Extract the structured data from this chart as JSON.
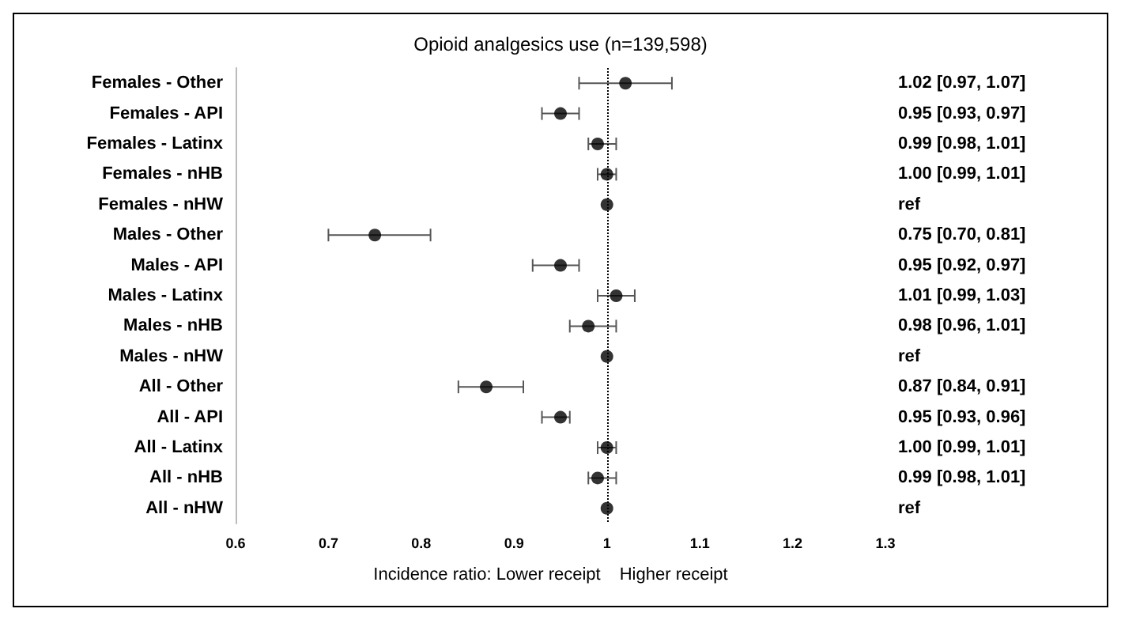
{
  "chart_data": {
    "type": "scatter",
    "orientation": "horizontal",
    "title": "Opioid analgesics use (n=139,598)",
    "categories": [
      "Females - Other",
      "Females - API",
      "Females - Latinx",
      "Females - nHB",
      "Females - nHW",
      "Males - Other",
      "Males - API",
      "Males - Latinx",
      "Males - nHB",
      "Males - nHW",
      "All - Other",
      "All - API",
      "All - Latinx",
      "All - nHB",
      "All - nHW"
    ],
    "values": [
      1.02,
      0.95,
      0.99,
      1.0,
      1,
      0.75,
      0.95,
      1.01,
      0.98,
      1,
      0.87,
      0.95,
      1.0,
      0.99,
      1
    ],
    "errors": [
      [
        0.97,
        1.07
      ],
      [
        0.93,
        0.97
      ],
      [
        0.98,
        1.01
      ],
      [
        0.99,
        1.01
      ],
      null,
      [
        0.7,
        0.81
      ],
      [
        0.92,
        0.97
      ],
      [
        0.99,
        1.03
      ],
      [
        0.96,
        1.01
      ],
      null,
      [
        0.84,
        0.91
      ],
      [
        0.93,
        0.96
      ],
      [
        0.99,
        1.01
      ],
      [
        0.98,
        1.01
      ],
      null
    ],
    "y2_categories": [
      "1.02 [0.97, 1.07]",
      "0.95 [0.93, 0.97]",
      "0.99 [0.98, 1.01]",
      "1.00 [0.99, 1.01]",
      "ref",
      "0.75 [0.70, 0.81]",
      "0.95 [0.92, 0.97]",
      "1.01 [0.99, 1.03]",
      "0.98 [0.96, 1.01]",
      "ref",
      "0.87 [0.84, 0.91]",
      "0.95 [0.93, 0.96]",
      "1.00 [0.99, 1.01]",
      "0.99 [0.98, 1.01]",
      "ref"
    ],
    "color": "#000000",
    "marker": "circle",
    "xlim": [
      0.6,
      1.3
    ],
    "xticks": [
      0.6,
      0.7,
      0.8,
      0.9,
      1,
      1.1,
      1.2,
      1.3
    ],
    "ref_lines": [
      {
        "axis": "x",
        "value": 1,
        "line_style": "dotted",
        "color": "#000000"
      }
    ],
    "annotations": [
      "Incidence ratio: Lower receipt",
      "Higher receipt"
    ],
    "grid": false
  }
}
